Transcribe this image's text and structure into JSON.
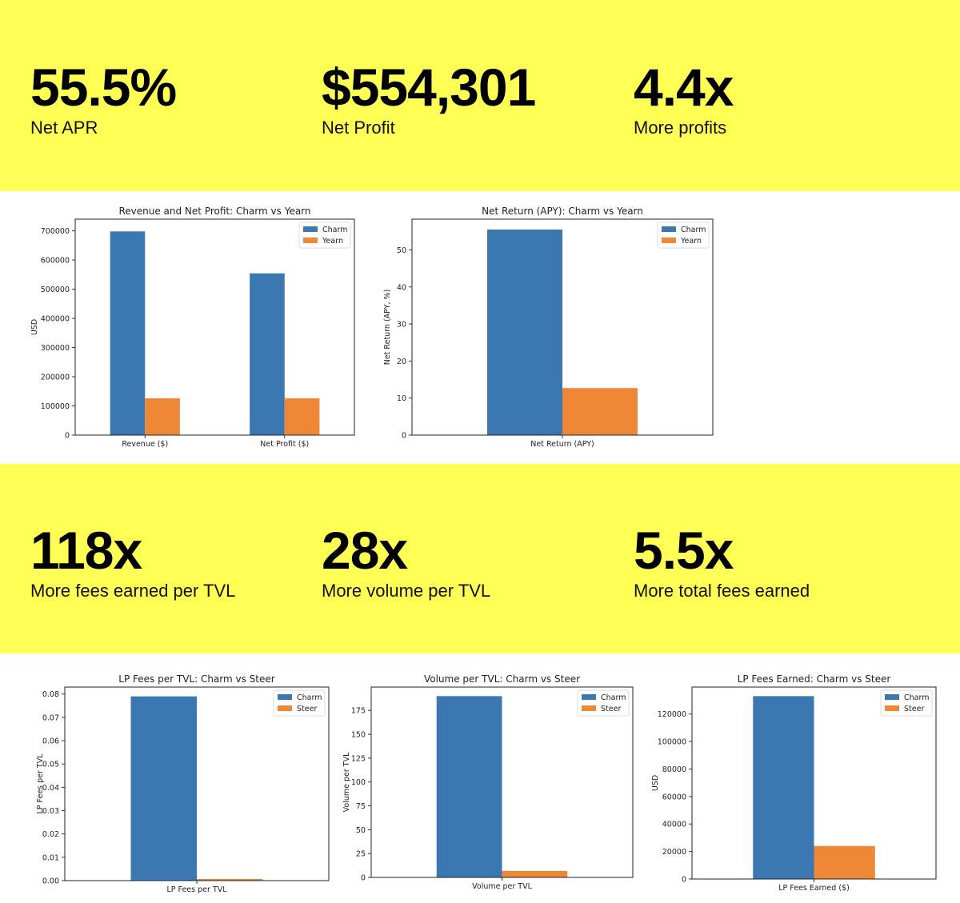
{
  "stats_top": [
    {
      "value": "55.5%",
      "label": "Net APR"
    },
    {
      "value": "$554,301",
      "label": "Net Profit"
    },
    {
      "value": "4.4x",
      "label": "More profits"
    }
  ],
  "stats_mid": [
    {
      "value": "118x",
      "label": "More fees earned per TVL"
    },
    {
      "value": "28x",
      "label": "More volume per TVL"
    },
    {
      "value": "5.5x",
      "label": "More total fees earned"
    }
  ],
  "colors": {
    "band": "#ffff55",
    "series_a": "#3b78b2",
    "series_b": "#ee8837"
  },
  "chart_data": [
    {
      "type": "bar",
      "title": "Revenue and Net Profit: Charm vs Yearn",
      "xlabel": "",
      "ylabel": "USD",
      "categories": [
        "Revenue ($)",
        "Net Profit ($)"
      ],
      "series": [
        {
          "name": "Charm",
          "values": [
            698000,
            554301
          ]
        },
        {
          "name": "Yearn",
          "values": [
            126000,
            126000
          ]
        }
      ],
      "ylim": [
        0,
        740000
      ],
      "yticks": [
        0,
        100000,
        200000,
        300000,
        400000,
        500000,
        600000,
        700000
      ],
      "ytick_labels": [
        "0",
        "100000",
        "200000",
        "300000",
        "400000",
        "500000",
        "600000",
        "700000"
      ],
      "legend": "top-right"
    },
    {
      "type": "bar",
      "title": "Net Return (APY): Charm vs Yearn",
      "xlabel": "",
      "ylabel": "Net Return (APY, %)",
      "categories": [
        "Net Return (APY)"
      ],
      "series": [
        {
          "name": "Charm",
          "values": [
            55.5
          ]
        },
        {
          "name": "Yearn",
          "values": [
            12.7
          ]
        }
      ],
      "ylim": [
        0,
        58.3
      ],
      "yticks": [
        0,
        10,
        20,
        30,
        40,
        50
      ],
      "ytick_labels": [
        "0",
        "10",
        "20",
        "30",
        "40",
        "50"
      ],
      "legend": "top-right"
    },
    {
      "type": "bar",
      "title": "LP Fees per TVL: Charm vs Steer",
      "xlabel": "",
      "ylabel": "LP Fees per TVL",
      "categories": [
        "LP Fees per TVL"
      ],
      "series": [
        {
          "name": "Charm",
          "values": [
            0.079
          ]
        },
        {
          "name": "Steer",
          "values": [
            0.0007
          ]
        }
      ],
      "ylim": [
        0,
        0.083
      ],
      "yticks": [
        0,
        0.01,
        0.02,
        0.03,
        0.04,
        0.05,
        0.06,
        0.07,
        0.08
      ],
      "ytick_labels": [
        "0.00",
        "0.01",
        "0.02",
        "0.03",
        "0.04",
        "0.05",
        "0.06",
        "0.07",
        "0.08"
      ],
      "legend": "top-right"
    },
    {
      "type": "bar",
      "title": "Volume per TVL: Charm vs Steer",
      "xlabel": "",
      "ylabel": "Volume per TVL",
      "categories": [
        "Volume per TVL"
      ],
      "series": [
        {
          "name": "Charm",
          "values": [
            190
          ]
        },
        {
          "name": "Steer",
          "values": [
            6.8
          ]
        }
      ],
      "ylim": [
        0,
        199.5
      ],
      "yticks": [
        0,
        25,
        50,
        75,
        100,
        125,
        150,
        175
      ],
      "ytick_labels": [
        "0",
        "25",
        "50",
        "75",
        "100",
        "125",
        "150",
        "175"
      ],
      "legend": "top-right"
    },
    {
      "type": "bar",
      "title": "LP Fees Earned: Charm vs Steer",
      "xlabel": "",
      "ylabel": "USD",
      "categories": [
        "LP Fees Earned ($)"
      ],
      "series": [
        {
          "name": "Charm",
          "values": [
            133000
          ]
        },
        {
          "name": "Steer",
          "values": [
            24000
          ]
        }
      ],
      "ylim": [
        0,
        139600
      ],
      "yticks": [
        0,
        20000,
        40000,
        60000,
        80000,
        100000,
        120000
      ],
      "ytick_labels": [
        "0",
        "20000",
        "40000",
        "60000",
        "80000",
        "100000",
        "120000"
      ],
      "legend": "top-right"
    }
  ]
}
